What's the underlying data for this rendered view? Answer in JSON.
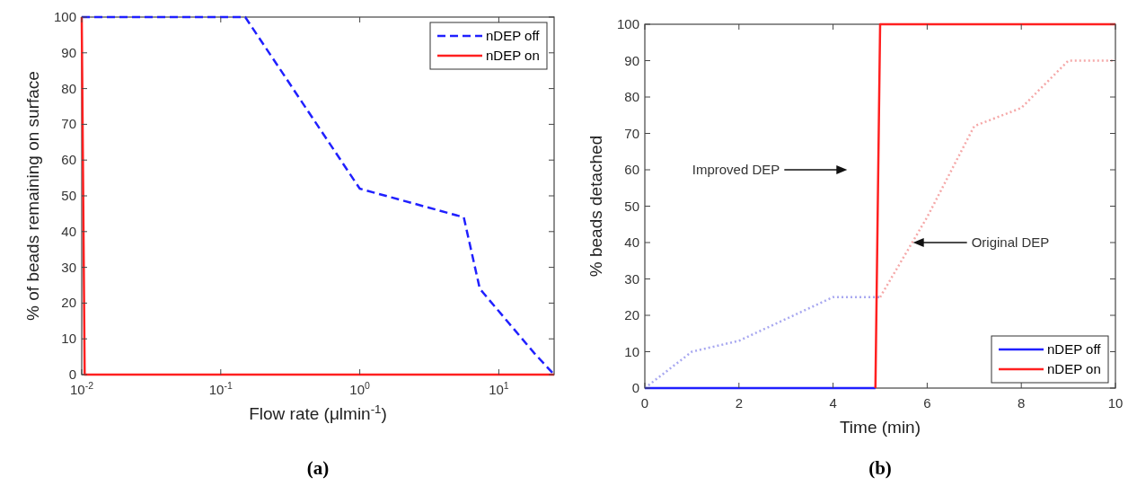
{
  "chart_data": [
    {
      "type": "line",
      "title": "(a)",
      "xlabel": "Flow rate (μlmin$^{-1}$)",
      "ylabel": "% of beads remaining on surface",
      "log": "x",
      "xlim": [
        0.01,
        25
      ],
      "xticks": [
        {
          "value": 0.01,
          "label": "10$^{-2}$"
        },
        {
          "value": 0.1,
          "label": "10$^{-1}$"
        },
        {
          "value": 1,
          "label": "10$^{0}$"
        },
        {
          "value": 10,
          "label": "10$^{1}$"
        }
      ],
      "ylim": [
        0,
        100
      ],
      "yticks": [
        0,
        10,
        20,
        30,
        40,
        50,
        60,
        70,
        80,
        90,
        100
      ],
      "legend": "top right",
      "grid": false,
      "series": [
        {
          "name": "nDEP off",
          "color": "#2020ff",
          "line_style": "dashed",
          "x": [
            0.01,
            0.15,
            1,
            5.6,
            7.3,
            18,
            25
          ],
          "values": [
            100,
            100,
            52,
            44,
            24,
            6,
            0
          ]
        },
        {
          "name": "nDEP on",
          "color": "#ff2020",
          "line_style": "solid",
          "x": [
            0.01,
            0.0105,
            25
          ],
          "values": [
            100,
            0,
            0
          ]
        }
      ]
    },
    {
      "type": "line",
      "title": "(b)",
      "xlabel": "Time (min)",
      "ylabel": "% beads detached",
      "xlim": [
        0,
        10
      ],
      "xticks": [
        0,
        2,
        4,
        6,
        8,
        10
      ],
      "ylim": [
        0,
        100
      ],
      "yticks": [
        0,
        10,
        20,
        30,
        40,
        50,
        60,
        70,
        80,
        90,
        100
      ],
      "legend": "bottom right",
      "grid": false,
      "annotations": [
        "Improved DEP",
        "Original DEP"
      ],
      "series": [
        {
          "color": "#a8a8f0",
          "line_style": "dotted",
          "x": [
            0,
            1,
            2,
            3,
            4,
            5
          ],
          "values": [
            0,
            10,
            13,
            19,
            25,
            25
          ]
        },
        {
          "color": "#f5a8a8",
          "line_style": "dotted",
          "x": [
            5,
            6,
            7,
            8,
            9,
            10
          ],
          "values": [
            25,
            47,
            72,
            77,
            90,
            90
          ]
        },
        {
          "name": "nDEP off",
          "color": "#2020ff",
          "line_style": "solid",
          "x": [
            0,
            4.9
          ],
          "values": [
            0,
            0
          ]
        },
        {
          "name": "nDEP on",
          "color": "#ff2020",
          "line_style": "solid",
          "x": [
            4.9,
            5,
            10
          ],
          "values": [
            0,
            100,
            100
          ]
        }
      ]
    }
  ]
}
